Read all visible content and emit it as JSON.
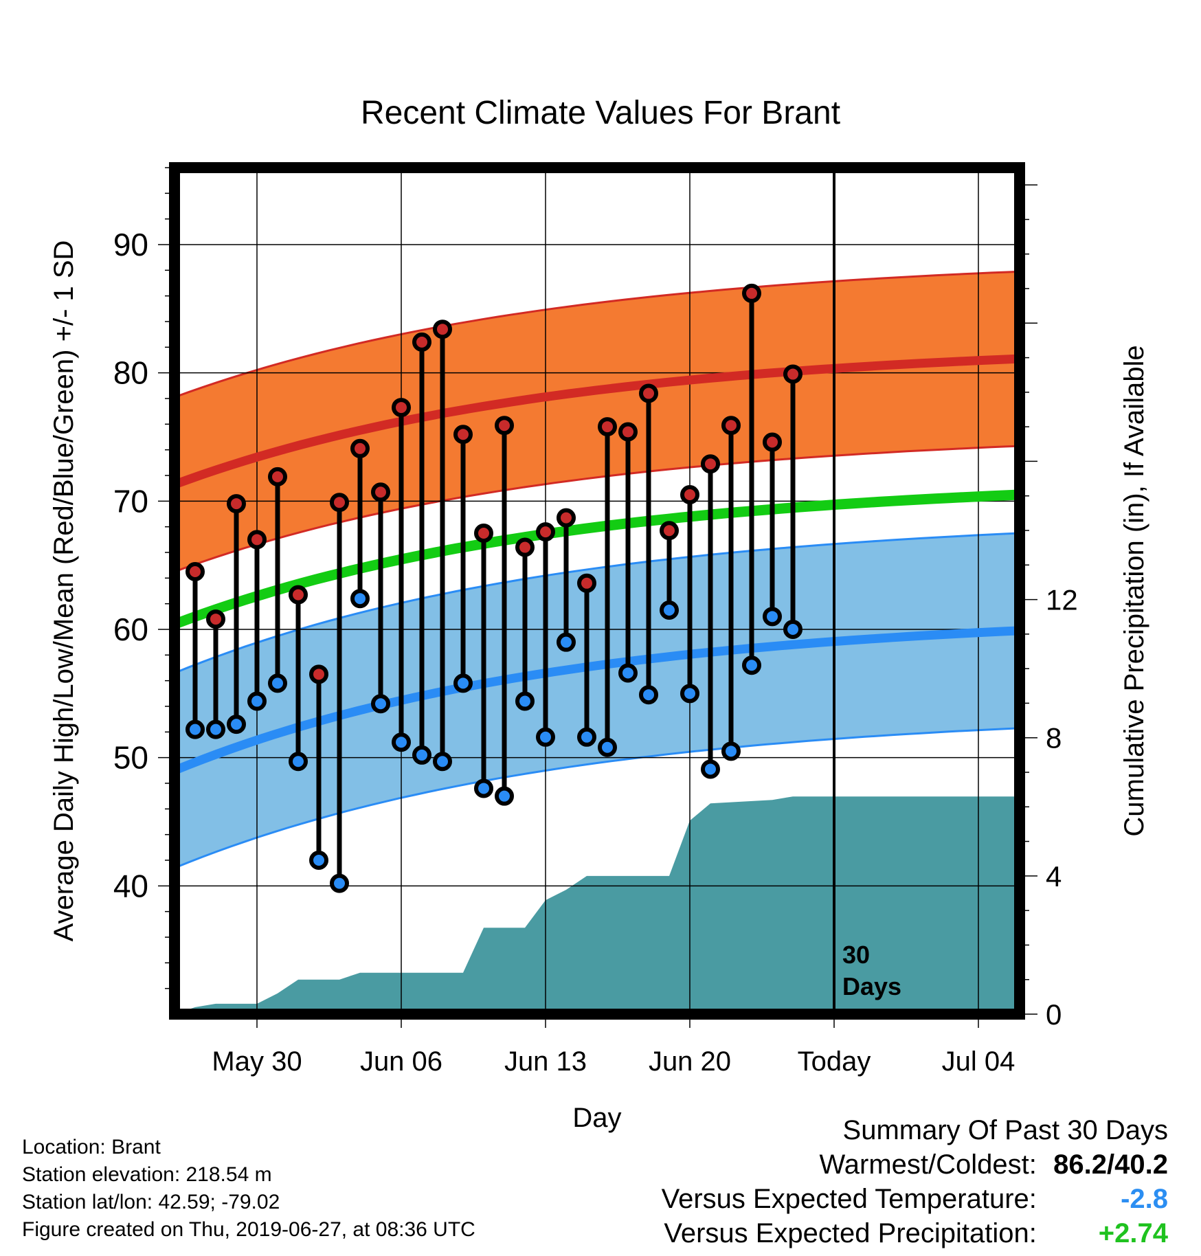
{
  "chart_data": {
    "type": "line",
    "title": "Recent Climate Values For Brant",
    "xlabel": "Day",
    "ylabel_left": "Average Daily High/Low/Mean (Red/Blue/Green) +/- 1 SD",
    "ylabel_right": "Cumulative Precipitation (in), If Available",
    "y_left_lim": [
      30,
      96
    ],
    "y_right_lim": [
      0,
      24.5
    ],
    "y_left_ticks": [
      "40",
      "50",
      "60",
      "70",
      "80",
      "90"
    ],
    "y_right_ticks": [
      "0",
      "4",
      "8",
      "12"
    ],
    "x_ticks": [
      "May 30",
      "Jun 06",
      "Jun 13",
      "Jun 20",
      "Today",
      "Jul 04"
    ],
    "x_range": [
      "2019-05-26",
      "2019-07-06"
    ],
    "grid": true,
    "today": "2019-06-27",
    "today_annotation": [
      "30",
      "Days"
    ],
    "days": [
      "2019-05-27",
      "2019-05-28",
      "2019-05-29",
      "2019-05-30",
      "2019-05-31",
      "2019-06-01",
      "2019-06-02",
      "2019-06-03",
      "2019-06-04",
      "2019-06-05",
      "2019-06-06",
      "2019-06-07",
      "2019-06-08",
      "2019-06-09",
      "2019-06-10",
      "2019-06-11",
      "2019-06-12",
      "2019-06-13",
      "2019-06-14",
      "2019-06-15",
      "2019-06-16",
      "2019-06-17",
      "2019-06-18",
      "2019-06-19",
      "2019-06-20",
      "2019-06-21",
      "2019-06-22",
      "2019-06-23",
      "2019-06-24",
      "2019-06-25"
    ],
    "observed_high": [
      64.5,
      60.8,
      69.8,
      67.0,
      71.9,
      62.7,
      56.5,
      69.9,
      74.1,
      70.7,
      77.3,
      82.4,
      83.4,
      75.2,
      67.5,
      75.9,
      66.4,
      67.6,
      68.7,
      63.6,
      75.8,
      75.4,
      78.4,
      67.7,
      70.5,
      72.9,
      75.9,
      86.2,
      74.6,
      79.9
    ],
    "observed_low": [
      52.2,
      52.2,
      52.6,
      54.4,
      55.8,
      49.7,
      42.0,
      40.2,
      62.4,
      54.2,
      51.2,
      50.2,
      49.7,
      55.8,
      47.6,
      47.0,
      54.4,
      51.6,
      59.0,
      51.6,
      50.8,
      56.6,
      54.9,
      61.5,
      55.0,
      49.1,
      50.5,
      57.2,
      61.0,
      60.0
    ],
    "normal_high": [
      71.3,
      81.1
    ],
    "normal_high_sd": 6.8,
    "normal_low": [
      49.0,
      59.9
    ],
    "normal_low_sd": 7.6,
    "normal_mean": [
      60.4,
      70.5
    ],
    "precip_dates": [
      "2019-05-26",
      "2019-05-27",
      "2019-05-28",
      "2019-05-30",
      "2019-05-31",
      "2019-06-01",
      "2019-06-03",
      "2019-06-04",
      "2019-06-05",
      "2019-06-09",
      "2019-06-10",
      "2019-06-12",
      "2019-06-13",
      "2019-06-14",
      "2019-06-15",
      "2019-06-19",
      "2019-06-20",
      "2019-06-21",
      "2019-06-24",
      "2019-06-25",
      "2019-07-06"
    ],
    "precip_cumulative": [
      0.0,
      0.2,
      0.3,
      0.3,
      0.6,
      1.0,
      1.0,
      1.2,
      1.2,
      1.2,
      2.5,
      2.5,
      3.3,
      3.6,
      4.0,
      4.0,
      5.6,
      6.1,
      6.2,
      6.3,
      6.3
    ]
  },
  "footer": {
    "location": "Location: Brant",
    "elevation": "Station elevation: 218.54 m",
    "latlon": "Station lat/lon: 42.59; -79.02",
    "created": "Figure created on Thu, 2019-06-27, at 08:36 UTC"
  },
  "summary": {
    "heading": "Summary Of Past 30 Days",
    "warmest_label": "Warmest/Coldest:",
    "warmest_value": "86.2/40.2",
    "temp_label": "Versus Expected Temperature:",
    "temp_value": "-2.8",
    "precip_label": "Versus Expected Precipitation:",
    "precip_value": "+2.74"
  },
  "colors": {
    "high_band": "#f47a31",
    "high_line": "#d22a24",
    "low_band": "#82bfe6",
    "low_line": "#2a8cf5",
    "mean_line": "#13cc13",
    "precip_fill": "#4a9ba2",
    "high_dot": "#c82b2b",
    "low_dot": "#2a8cf5"
  }
}
